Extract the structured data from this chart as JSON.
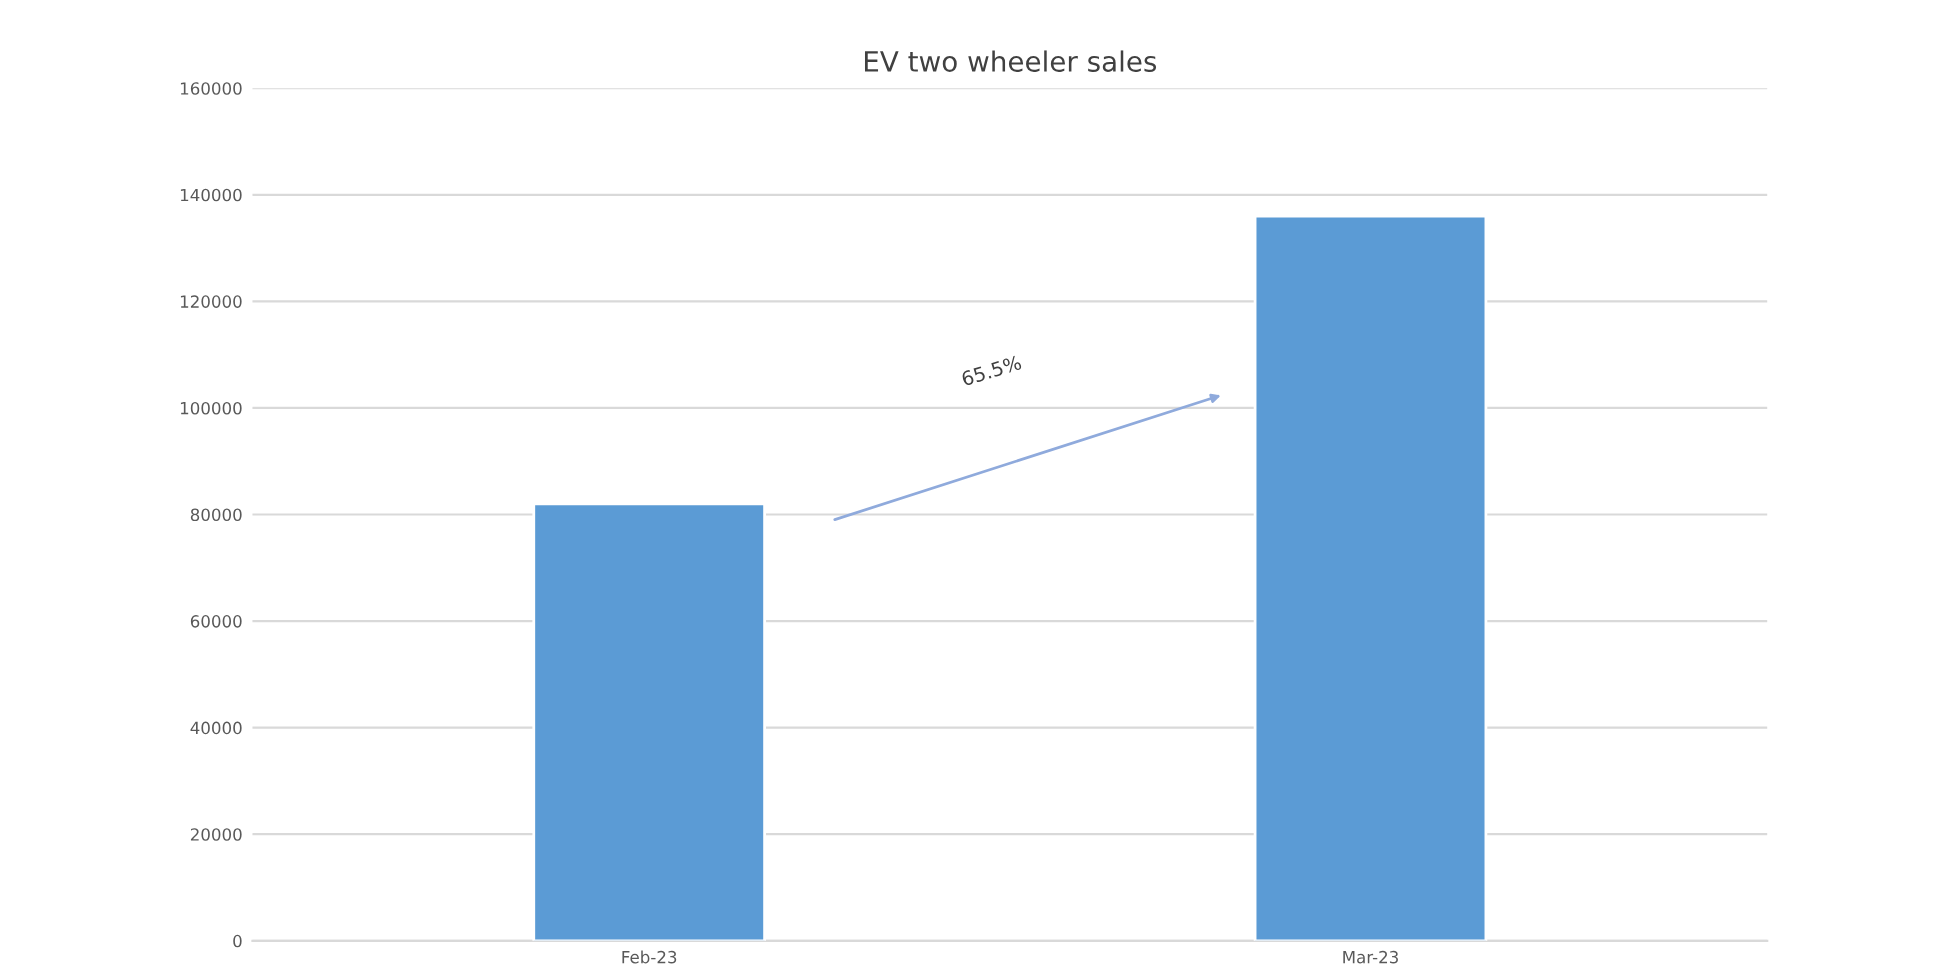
{
  "chart_data": {
    "type": "bar",
    "title": "EV two wheeler sales",
    "categories": [
      "Feb-23",
      "Mar-23"
    ],
    "values": [
      82000,
      136000
    ],
    "color": "#5b9bd5",
    "ylim": [
      0,
      160000
    ],
    "yticks": [
      0,
      20000,
      40000,
      60000,
      80000,
      100000,
      120000,
      140000,
      160000
    ],
    "grid": "y",
    "annotations": [
      "65.5%"
    ]
  }
}
